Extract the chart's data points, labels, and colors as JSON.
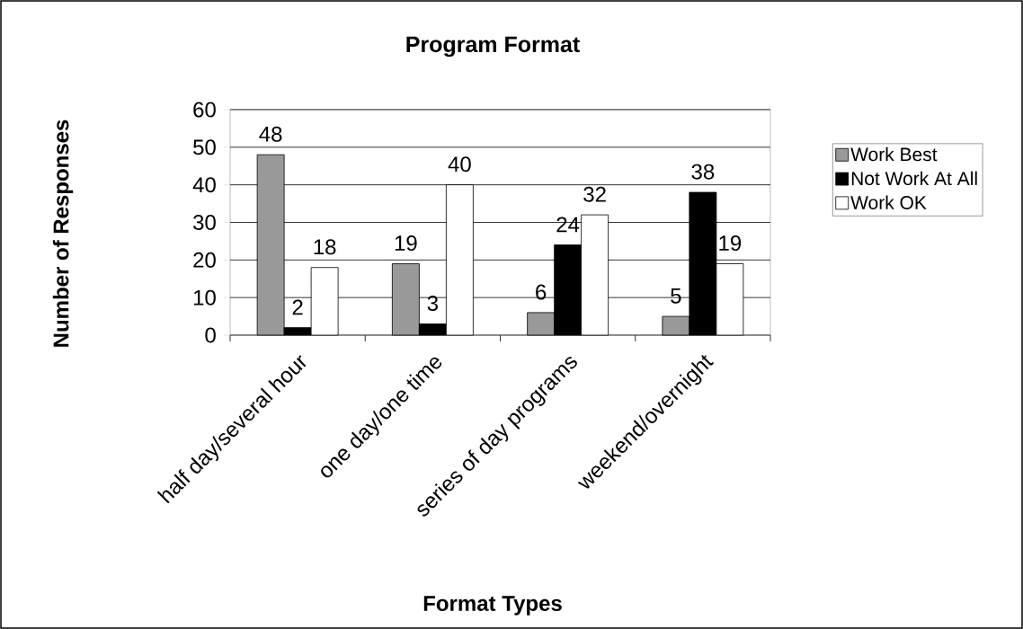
{
  "chart_data": {
    "type": "bar",
    "title": "Program Format",
    "xlabel": "Format Types",
    "ylabel": "Number of Responses",
    "categories": [
      "half day/several hour",
      "one day/one time",
      "series of day programs",
      "weekend/overnight"
    ],
    "series": [
      {
        "name": "Work Best",
        "color": "#999999",
        "values": [
          48,
          19,
          6,
          5
        ]
      },
      {
        "name": "Not Work At All",
        "color": "#000000",
        "values": [
          2,
          3,
          24,
          38
        ]
      },
      {
        "name": "Work OK",
        "color": "#ffffff",
        "values": [
          18,
          40,
          32,
          19
        ]
      }
    ],
    "ylim": [
      0,
      60
    ],
    "yticks": [
      0,
      10,
      20,
      30,
      40,
      50,
      60
    ],
    "grid": "y",
    "legend": "right",
    "data_labels": true
  }
}
